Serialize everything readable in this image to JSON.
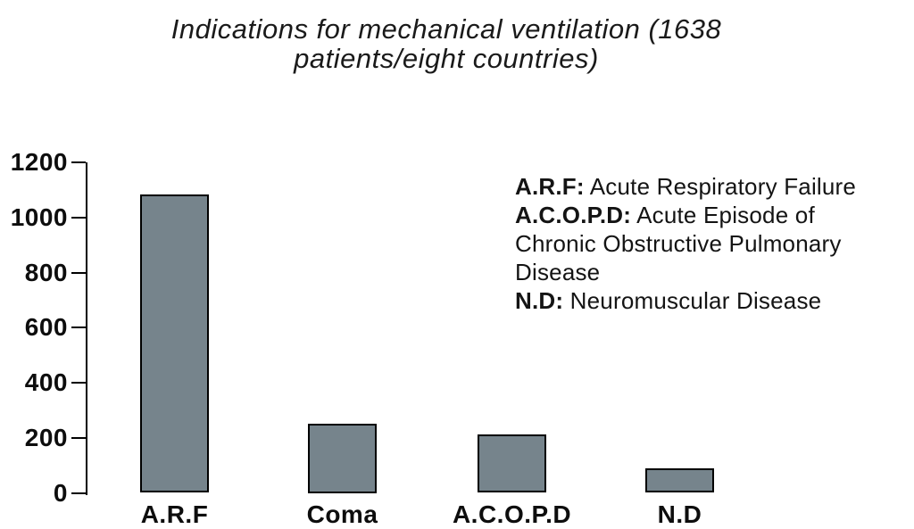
{
  "figure": {
    "title_lines": [
      "Indications for mechanical ventilation (1638",
      "patients/eight countries)"
    ]
  },
  "legend": {
    "lines": [
      {
        "term": "A.R.F:",
        "text": "Acute Respiratory Failure"
      },
      {
        "term": "A.C.O.P.D:",
        "text": "Acute Episode of"
      },
      {
        "term": "",
        "text": "Chronic Obstructive Pulmonary"
      },
      {
        "term": "",
        "text": "Disease"
      },
      {
        "term": "N.D:",
        "text": "Neuromuscular Disease"
      }
    ]
  },
  "colors": {
    "bar_fill": "#76848C",
    "bar_border": "#000000",
    "axis": "#000000",
    "text": "#000000",
    "background": "#FFFFFF"
  },
  "chart_data": {
    "type": "bar",
    "title": "Indications for mechanical ventilation (1638 patients/eight countries)",
    "categories": [
      "A.R.F",
      "Coma",
      "A.C.O.P.D",
      "N.D"
    ],
    "values": [
      1085,
      250,
      213,
      88
    ],
    "xlabel": "",
    "ylabel": "",
    "ylim": [
      0,
      1200
    ],
    "yticks": [
      0,
      200,
      400,
      600,
      800,
      1000,
      1200
    ],
    "grid": false,
    "legend_position": "right",
    "legend_entries": [
      "A.R.F: Acute Respiratory Failure",
      "A.C.O.P.D: Acute Episode of Chronic Obstructive Pulmonary Disease",
      "N.D: Neuromuscular Disease"
    ]
  }
}
